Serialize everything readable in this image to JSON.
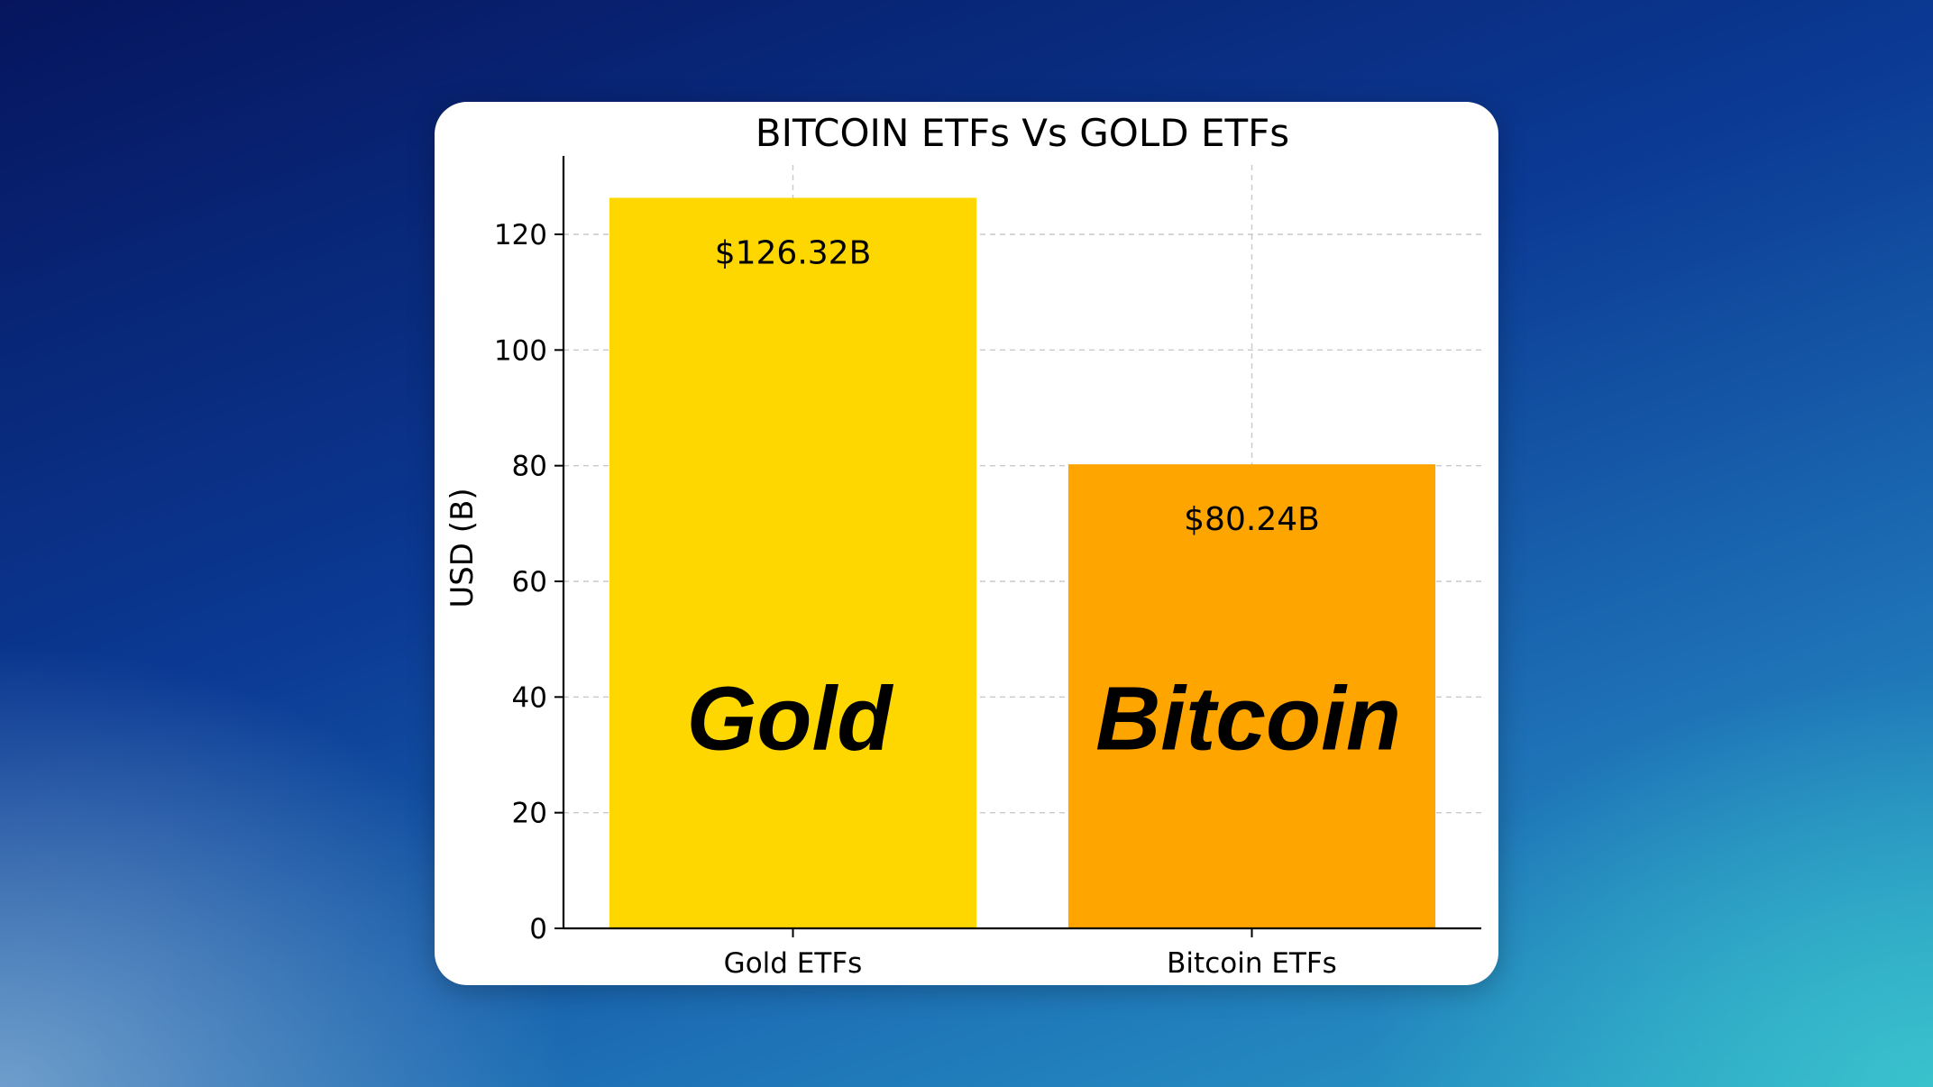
{
  "chart_data": {
    "type": "bar",
    "title": "BITCOIN ETFs Vs GOLD ETFs",
    "xlabel": "",
    "ylabel": "USD (B)",
    "categories": [
      "Gold ETFs",
      "Bitcoin ETFs"
    ],
    "values": [
      126.32,
      80.24
    ],
    "value_labels": [
      "$126.32B",
      "$80.24B"
    ],
    "bar_overlay_labels": [
      "Gold",
      "Bitcoin"
    ],
    "bar_colors": [
      "#FFD700",
      "#FFA500"
    ],
    "ylim": [
      0,
      132
    ],
    "yticks": [
      0,
      20,
      40,
      60,
      80,
      100,
      120
    ],
    "grid": true,
    "legend": "none"
  }
}
